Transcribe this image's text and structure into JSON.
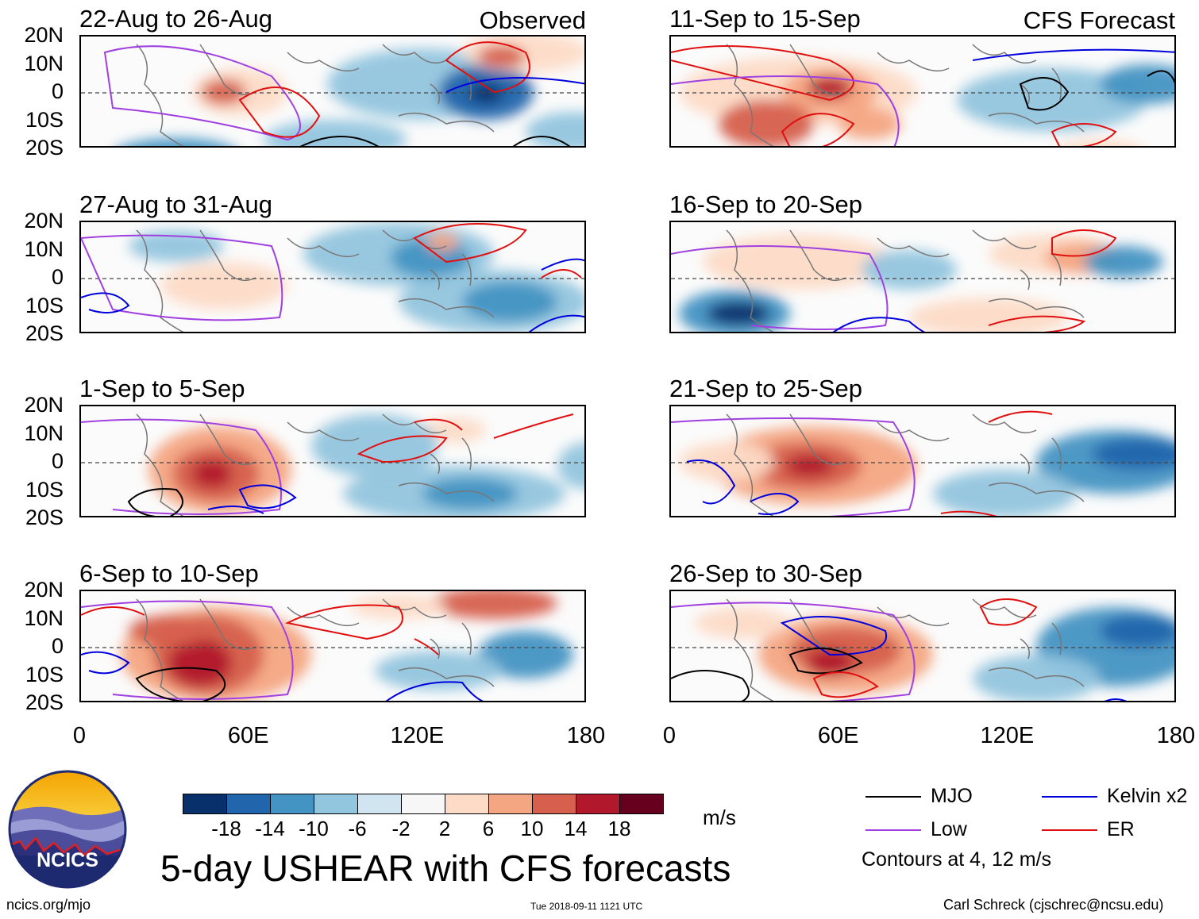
{
  "headers": {
    "left": "Observed",
    "right": "CFS Forecast"
  },
  "panels": [
    {
      "title": "22-Aug to 26-Aug"
    },
    {
      "title": "11-Sep to 15-Sep"
    },
    {
      "title": "27-Aug to 31-Aug"
    },
    {
      "title": "16-Sep to 20-Sep"
    },
    {
      "title": "1-Sep to 5-Sep"
    },
    {
      "title": "21-Sep to 25-Sep"
    },
    {
      "title": "6-Sep to 10-Sep"
    },
    {
      "title": "26-Sep to 30-Sep"
    }
  ],
  "lat_ticks": [
    "20N",
    "10N",
    "0",
    "10S",
    "20S"
  ],
  "lon_ticks": [
    "0",
    "60E",
    "120E",
    "180"
  ],
  "colorbar": {
    "colors": [
      "#08306b",
      "#2166ac",
      "#4393c3",
      "#92c5de",
      "#d1e5f0",
      "#f7f7f7",
      "#fddbc7",
      "#f4a582",
      "#d6604d",
      "#b2182b",
      "#67001f"
    ],
    "labels": [
      "-18",
      "-14",
      "-10",
      "-6",
      "-2",
      "2",
      "6",
      "10",
      "14",
      "18"
    ],
    "units": "m/s"
  },
  "legend": {
    "items": [
      {
        "label": "MJO",
        "color": "#000000"
      },
      {
        "label": "Kelvin x2",
        "color": "#0000dd"
      },
      {
        "label": "Low",
        "color": "#a040e0"
      },
      {
        "label": "ER",
        "color": "#e01010"
      }
    ],
    "note": "Contours at 4, 12 m/s"
  },
  "title": "5-day USHEAR with CFS forecasts",
  "logo_text": "NCICS",
  "footer": {
    "left": "ncics.org/mjo",
    "center": "Tue 2018-09-11 1121 UTC",
    "right": "Carl Schreck (cjschrec@ncsu.edu)"
  }
}
